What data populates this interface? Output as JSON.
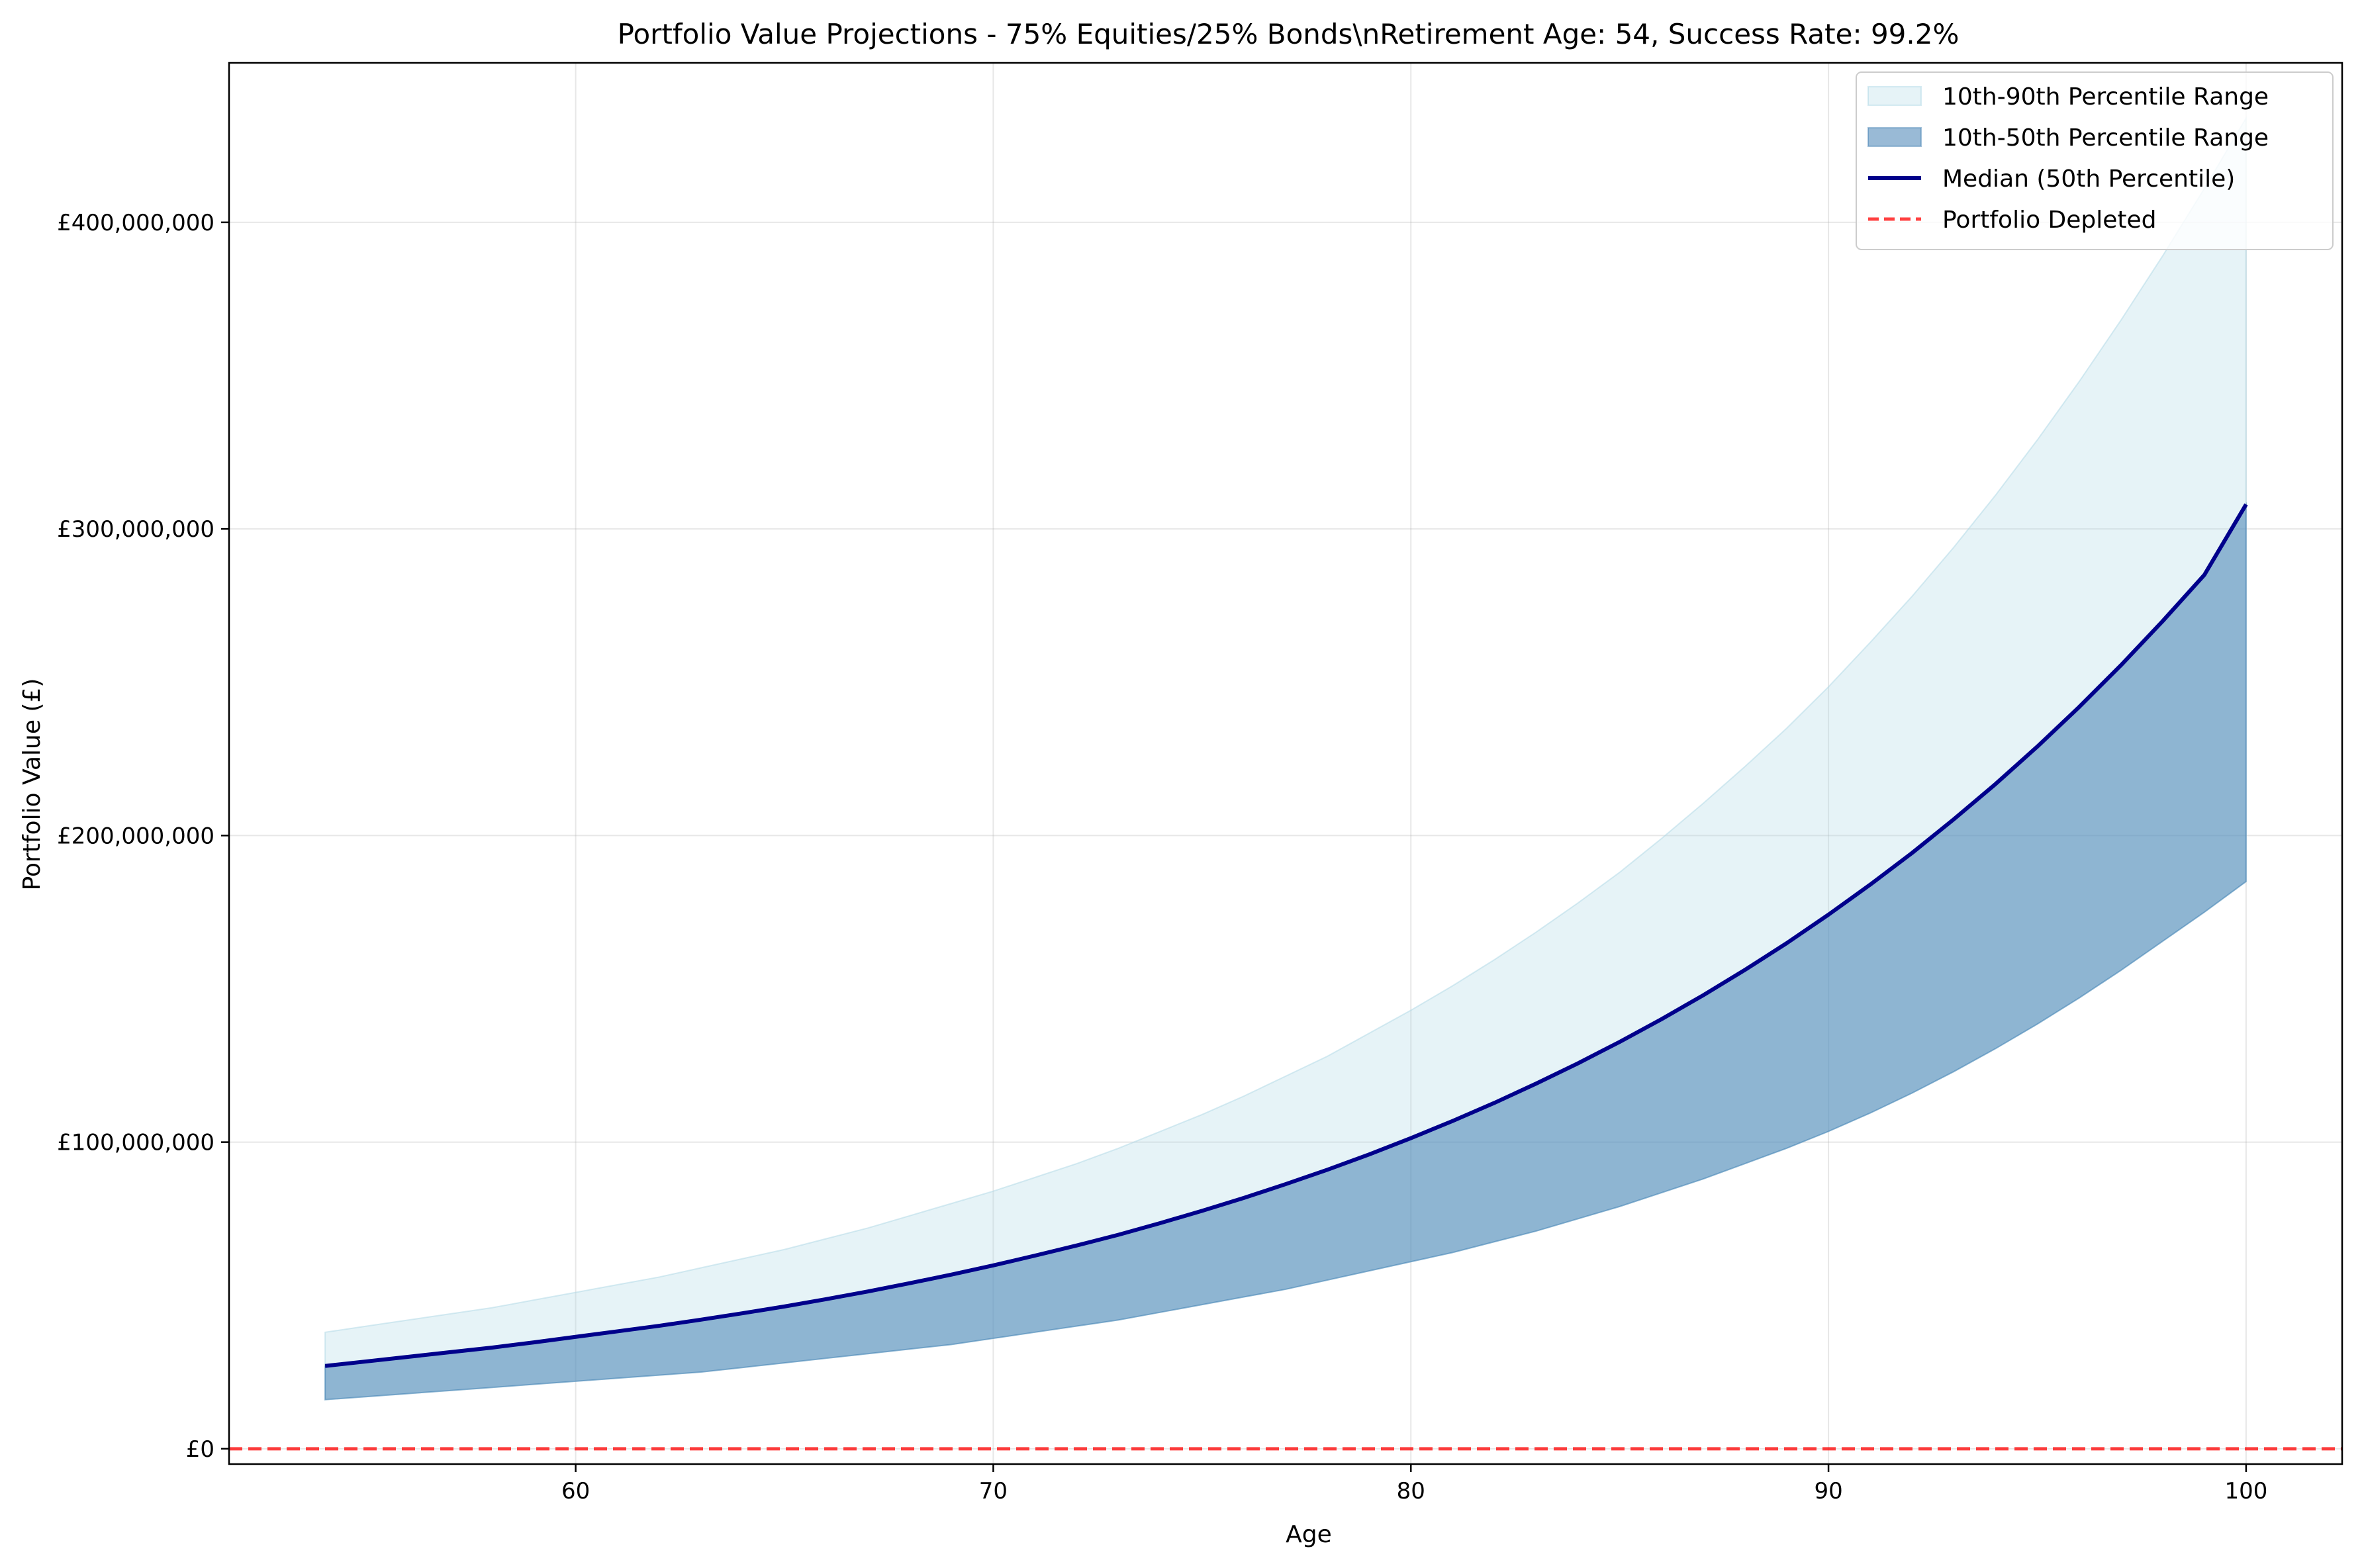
{
  "chart_data": {
    "type": "area",
    "title": "Portfolio Value Projections - 75% Equities/25% Bonds\\nRetirement Age: 54, Success Rate: 99.2%",
    "xlabel": "Age",
    "ylabel": "Portfolio Value (£)",
    "xlim": [
      51.7,
      102.3
    ],
    "ylim": [
      -5000000,
      452000000
    ],
    "xticks": [
      60,
      70,
      80,
      90,
      100
    ],
    "yticks": [
      0,
      100000000,
      200000000,
      300000000,
      400000000
    ],
    "ytick_labels": [
      "£0",
      "£100,000,000",
      "£200,000,000",
      "£300,000,000",
      "£400,000,000"
    ],
    "grid": true,
    "legend_position": "top-right",
    "x": [
      54,
      55,
      56,
      57,
      58,
      59,
      60,
      61,
      62,
      63,
      64,
      65,
      66,
      67,
      68,
      69,
      70,
      71,
      72,
      73,
      74,
      75,
      76,
      77,
      78,
      79,
      80,
      81,
      82,
      83,
      84,
      85,
      86,
      87,
      88,
      89,
      90,
      91,
      92,
      93,
      94,
      95,
      96,
      97,
      98,
      99,
      100
    ],
    "series": [
      {
        "name": "10th-90th Percentile Range",
        "kind": "band",
        "color": "#add8e6",
        "lower": [
          16000000,
          17000000,
          18000000,
          19000000,
          20000000,
          21000000,
          22000000,
          23000000,
          24000000,
          25000000,
          26500000,
          28000000,
          29500000,
          31000000,
          32500000,
          34000000,
          36000000,
          38000000,
          40000000,
          42000000,
          44500000,
          47000000,
          49500000,
          52000000,
          55000000,
          58000000,
          61000000,
          64000000,
          67500000,
          71000000,
          75000000,
          79000000,
          83500000,
          88000000,
          93000000,
          98000000,
          103500000,
          109500000,
          116000000,
          123000000,
          130500000,
          138500000,
          147000000,
          156000000,
          165500000,
          175000000,
          185000000
        ],
        "upper": [
          38000000,
          40000000,
          42000000,
          44000000,
          46000000,
          48500000,
          51000000,
          53500000,
          56000000,
          59000000,
          62000000,
          65000000,
          68500000,
          72000000,
          76000000,
          80000000,
          84000000,
          88500000,
          93000000,
          98000000,
          103500000,
          109000000,
          115000000,
          121500000,
          128000000,
          135500000,
          143000000,
          151000000,
          159500000,
          168500000,
          178000000,
          188000000,
          199000000,
          210500000,
          222500000,
          235000000,
          248500000,
          263000000,
          278000000,
          294000000,
          311000000,
          329000000,
          348000000,
          368000000,
          389000000,
          411000000,
          434000000
        ]
      },
      {
        "name": "10th-50th Percentile Range",
        "kind": "band",
        "color": "#4682b4",
        "lower": [
          16000000,
          17000000,
          18000000,
          19000000,
          20000000,
          21000000,
          22000000,
          23000000,
          24000000,
          25000000,
          26500000,
          28000000,
          29500000,
          31000000,
          32500000,
          34000000,
          36000000,
          38000000,
          40000000,
          42000000,
          44500000,
          47000000,
          49500000,
          52000000,
          55000000,
          58000000,
          61000000,
          64000000,
          67500000,
          71000000,
          75000000,
          79000000,
          83500000,
          88000000,
          93000000,
          98000000,
          103500000,
          109500000,
          116000000,
          123000000,
          130500000,
          138500000,
          147000000,
          156000000,
          165500000,
          175000000,
          185000000
        ],
        "upper": [
          27000000,
          28500000,
          30000000,
          31500000,
          33000000,
          34700000,
          36500000,
          38300000,
          40100000,
          42100000,
          44200000,
          46400000,
          48800000,
          51300000,
          54000000,
          56800000,
          59800000,
          63000000,
          66300000,
          69800000,
          73600000,
          77600000,
          81800000,
          86300000,
          91000000,
          96000000,
          101300000,
          106900000,
          112800000,
          119100000,
          125700000,
          132700000,
          140100000,
          147900000,
          156200000,
          164900000,
          174200000,
          184000000,
          194300000,
          205300000,
          216800000,
          229000000,
          241900000,
          255500000,
          269900000,
          285000000,
          308000000
        ]
      },
      {
        "name": "Median (50th Percentile)",
        "kind": "line",
        "color": "#00008b",
        "values": [
          27000000,
          28500000,
          30000000,
          31500000,
          33000000,
          34700000,
          36500000,
          38300000,
          40100000,
          42100000,
          44200000,
          46400000,
          48800000,
          51300000,
          54000000,
          56800000,
          59800000,
          63000000,
          66300000,
          69800000,
          73600000,
          77600000,
          81800000,
          86300000,
          91000000,
          96000000,
          101300000,
          106900000,
          112800000,
          119100000,
          125700000,
          132700000,
          140100000,
          147900000,
          156200000,
          164900000,
          174200000,
          184000000,
          194300000,
          205300000,
          216800000,
          229000000,
          241900000,
          255500000,
          269900000,
          285000000,
          308000000
        ]
      },
      {
        "name": "Portfolio Depleted",
        "kind": "hline",
        "color": "#ff0000",
        "value": 0
      }
    ]
  }
}
